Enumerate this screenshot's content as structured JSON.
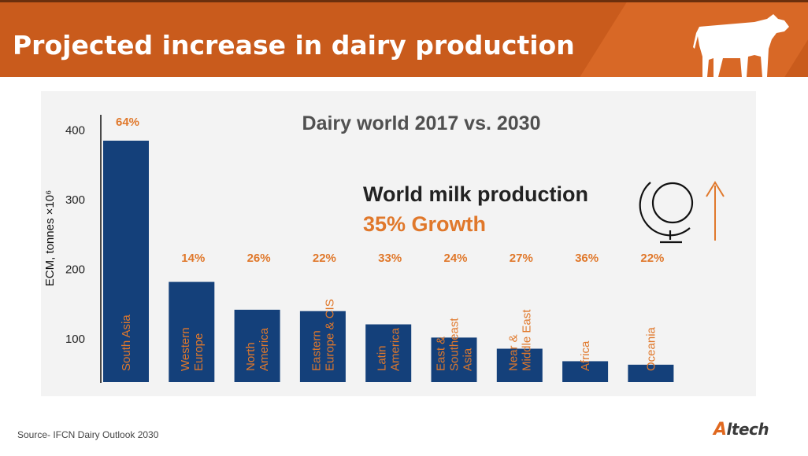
{
  "header": {
    "title": "Projected increase in dairy production"
  },
  "footer": {
    "source": "Source- IFCN Dairy Outlook 2030",
    "logo_mark": "A",
    "logo_text": "ltech"
  },
  "overlay": {
    "headline": "World milk production",
    "growth": "35% Growth"
  },
  "colors": {
    "bar": "#14407a",
    "accent": "#e0782b",
    "header_bg": "#c95b1c"
  },
  "chart_data": {
    "type": "bar",
    "title": "Dairy world 2017 vs. 2030",
    "ylabel": "ECM, tonnes ×10⁶",
    "ylim": [
      50,
      420
    ],
    "yticks": [
      100,
      200,
      300,
      400
    ],
    "categories": [
      "South Asia",
      "Western Europe",
      "North America",
      "Eastern Europe & CIS",
      "Latin America",
      "East & Southeast Asia",
      "Near & Middle East",
      "Africa",
      "Oceania"
    ],
    "category_lines": [
      [
        "South Asia"
      ],
      [
        "Western",
        "Europe"
      ],
      [
        "North",
        "America"
      ],
      [
        "Eastern",
        "Europe & CIS"
      ],
      [
        "Latin",
        "America"
      ],
      [
        "East &",
        "Southeast",
        "Asia"
      ],
      [
        "Near &",
        "Middle East"
      ],
      [
        "Africa"
      ],
      [
        "Oceania"
      ]
    ],
    "values": [
      385,
      182,
      142,
      140,
      121,
      102,
      86,
      68,
      63
    ],
    "growth_labels": [
      "64%",
      "14%",
      "26%",
      "22%",
      "33%",
      "24%",
      "27%",
      "36%",
      "22%"
    ]
  }
}
